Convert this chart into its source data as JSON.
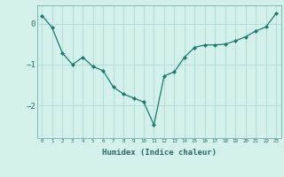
{
  "x": [
    0,
    1,
    2,
    3,
    4,
    5,
    6,
    7,
    8,
    9,
    10,
    11,
    12,
    13,
    14,
    15,
    16,
    17,
    18,
    19,
    20,
    21,
    22,
    23
  ],
  "y": [
    0.2,
    -0.1,
    -0.72,
    -1.0,
    -0.82,
    -1.05,
    -1.15,
    -1.55,
    -1.72,
    -1.82,
    -1.92,
    -2.48,
    -1.28,
    -1.18,
    -0.82,
    -0.58,
    -0.52,
    -0.52,
    -0.5,
    -0.42,
    -0.32,
    -0.18,
    -0.08,
    0.25
  ],
  "line_color": "#1a7a6e",
  "marker": "D",
  "marker_size": 2.0,
  "bg_color": "#d4f0eb",
  "grid_color": "#aed9d3",
  "xlabel": "Humidex (Indice chaleur)",
  "ylim": [
    -2.8,
    0.45
  ],
  "xlim": [
    -0.5,
    23.5
  ],
  "yticks": [
    0,
    -1,
    -2
  ],
  "xtick_labels": [
    "0",
    "1",
    "2",
    "3",
    "4",
    "5",
    "6",
    "7",
    "8",
    "9",
    "10",
    "11",
    "12",
    "13",
    "14",
    "15",
    "16",
    "17",
    "18",
    "19",
    "20",
    "21",
    "22",
    "23"
  ]
}
